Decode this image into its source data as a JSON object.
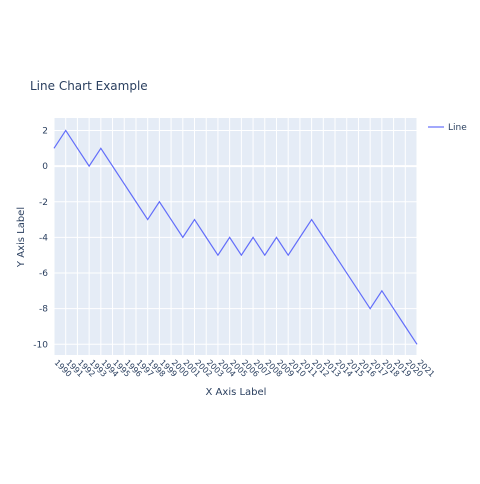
{
  "chart_data": {
    "type": "line",
    "title": "Line Chart Example",
    "x_label": "X Axis Label",
    "y_label": "Y Axis Label",
    "x": [
      1990,
      1991,
      1992,
      1993,
      1994,
      1995,
      1996,
      1997,
      1998,
      1999,
      2000,
      2001,
      2002,
      2003,
      2004,
      2005,
      2006,
      2007,
      2008,
      2009,
      2010,
      2011,
      2012,
      2013,
      2014,
      2015,
      2016,
      2017,
      2018,
      2019,
      2020,
      2021
    ],
    "series": [
      {
        "name": "Line",
        "color": "#636efa",
        "values": [
          1,
          2,
          1,
          0,
          1,
          0,
          -1,
          -2,
          -3,
          -2,
          -3,
          -4,
          -3,
          -4,
          -5,
          -4,
          -5,
          -4,
          -5,
          -4,
          -5,
          -4,
          -3,
          -4,
          -5,
          -6,
          -7,
          -8,
          -7,
          -8,
          -9,
          -10
        ]
      }
    ],
    "xlim": [
      1990,
      2021
    ],
    "xticks": [
      1990,
      1991,
      1992,
      1993,
      1994,
      1995,
      1996,
      1997,
      1998,
      1999,
      2000,
      2001,
      2002,
      2003,
      2004,
      2005,
      2006,
      2007,
      2008,
      2009,
      2010,
      2011,
      2012,
      2013,
      2014,
      2015,
      2016,
      2017,
      2018,
      2019,
      2020,
      2021
    ],
    "ylim": [
      -10.6,
      2.7
    ],
    "yticks": [
      -10,
      -8,
      -6,
      -4,
      -2,
      0,
      2
    ],
    "grid": true,
    "legend": "top-right"
  }
}
